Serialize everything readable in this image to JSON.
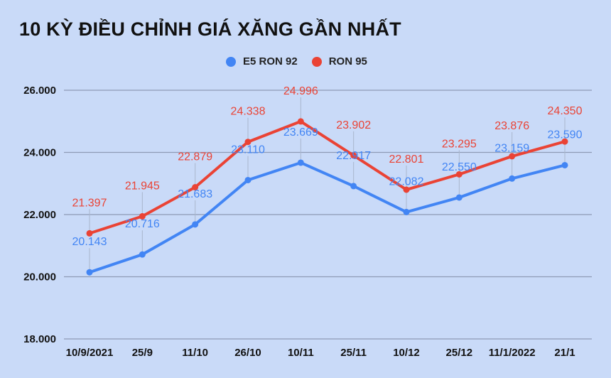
{
  "chart_data": {
    "type": "line",
    "title": "10 KỲ ĐIỀU CHỈNH GIÁ XĂNG GẦN NHẤT",
    "xlabel": "",
    "ylabel": "",
    "categories": [
      "10/9/2021",
      "25/9",
      "11/10",
      "26/10",
      "10/11",
      "25/11",
      "10/12",
      "25/12",
      "11/1/2022",
      "21/1"
    ],
    "series": [
      {
        "name": "E5 RON 92",
        "color": "#4285f4",
        "values": [
          20143,
          20716,
          21683,
          23110,
          23669,
          22917,
          22082,
          22550,
          23159,
          23590
        ],
        "labels": [
          "20.143",
          "20.716",
          "21.683",
          "23.110",
          "23.669",
          "22.917",
          "22.082",
          "22.550",
          "23.159",
          "23.590"
        ]
      },
      {
        "name": "RON 95",
        "color": "#ea4335",
        "values": [
          21397,
          21945,
          22879,
          24338,
          24996,
          23902,
          22801,
          23295,
          23876,
          24350
        ],
        "labels": [
          "21.397",
          "21.945",
          "22.879",
          "24.338",
          "24.996",
          "23.902",
          "22.801",
          "23.295",
          "23.876",
          "24.350"
        ]
      }
    ],
    "yticks": [
      18000,
      20000,
      22000,
      24000,
      26000
    ],
    "ytick_labels": [
      "18.000",
      "20.000",
      "22.000",
      "24.000",
      "26.000"
    ],
    "ylim": [
      18000,
      26000
    ],
    "grid": true,
    "legend_position": "top"
  },
  "legend": {
    "items": [
      {
        "label": "E5 RON 92",
        "color": "#4285f4"
      },
      {
        "label": "RON 95",
        "color": "#ea4335"
      }
    ]
  }
}
